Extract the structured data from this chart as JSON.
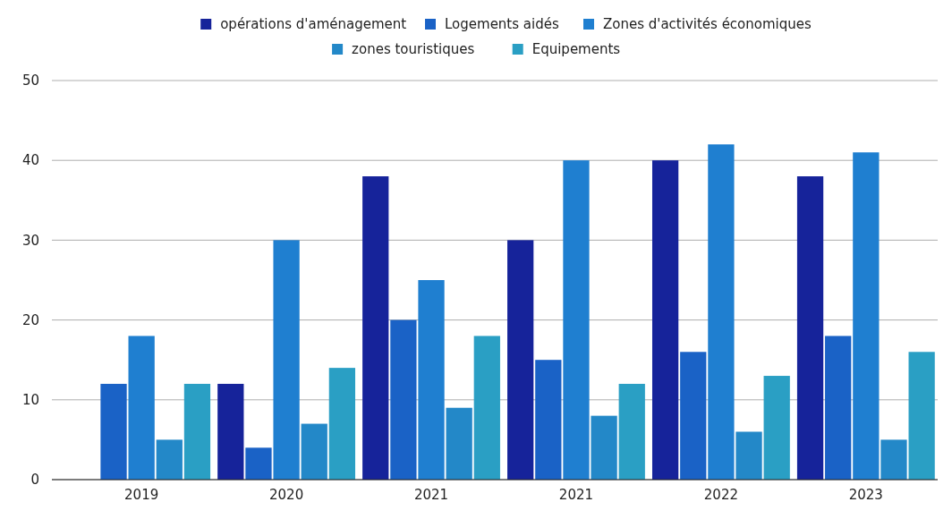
{
  "chart_data": {
    "type": "bar",
    "categories": [
      "2019",
      "2020",
      "2021",
      "2021",
      "2022",
      "2023"
    ],
    "series": [
      {
        "name": "opérations d'aménagement",
        "color": "#16239a",
        "values": [
          null,
          12,
          38,
          30,
          40,
          38
        ]
      },
      {
        "name": "Logements aidés",
        "color": "#1a62c6",
        "values": [
          12,
          4,
          20,
          15,
          16,
          18
        ]
      },
      {
        "name": "Zones d'activités économiques",
        "color": "#1f7fd0",
        "values": [
          18,
          30,
          25,
          40,
          42,
          41
        ]
      },
      {
        "name": "zones touristiques",
        "color": "#2388c8",
        "values": [
          5,
          7,
          9,
          8,
          6,
          5
        ]
      },
      {
        "name": "Equipements",
        "color": "#2a9fc4",
        "values": [
          12,
          14,
          18,
          12,
          13,
          16
        ]
      }
    ],
    "ylim": [
      0,
      50
    ],
    "yticks": [
      0,
      10,
      20,
      30,
      40,
      50
    ],
    "grid": "y",
    "legend": "top"
  }
}
